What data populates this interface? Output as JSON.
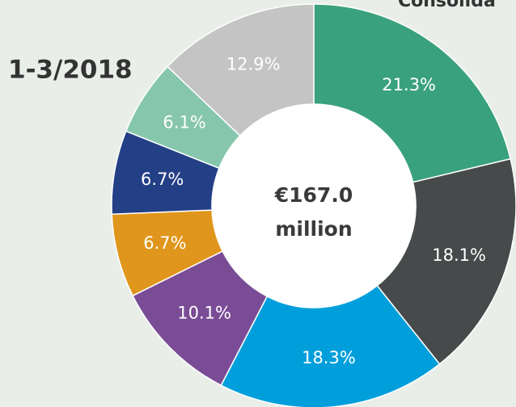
{
  "chart_data": {
    "type": "pie",
    "title": "Consolida",
    "subtitle": "1-3/2018",
    "center_label": [
      "€167.0",
      "million"
    ],
    "values": [
      21.3,
      18.1,
      18.3,
      10.1,
      6.7,
      6.7,
      6.1,
      12.9
    ],
    "value_labels": [
      "21.3%",
      "18.1%",
      "18.3%",
      "10.1%",
      "6.7%",
      "6.7%",
      "6.1%",
      "12.9%"
    ],
    "colors": [
      "#3aa17e",
      "#464a4b",
      "#009fdb",
      "#7a4c96",
      "#e0961c",
      "#233f86",
      "#86c6ad",
      "#c4c4c4"
    ]
  }
}
